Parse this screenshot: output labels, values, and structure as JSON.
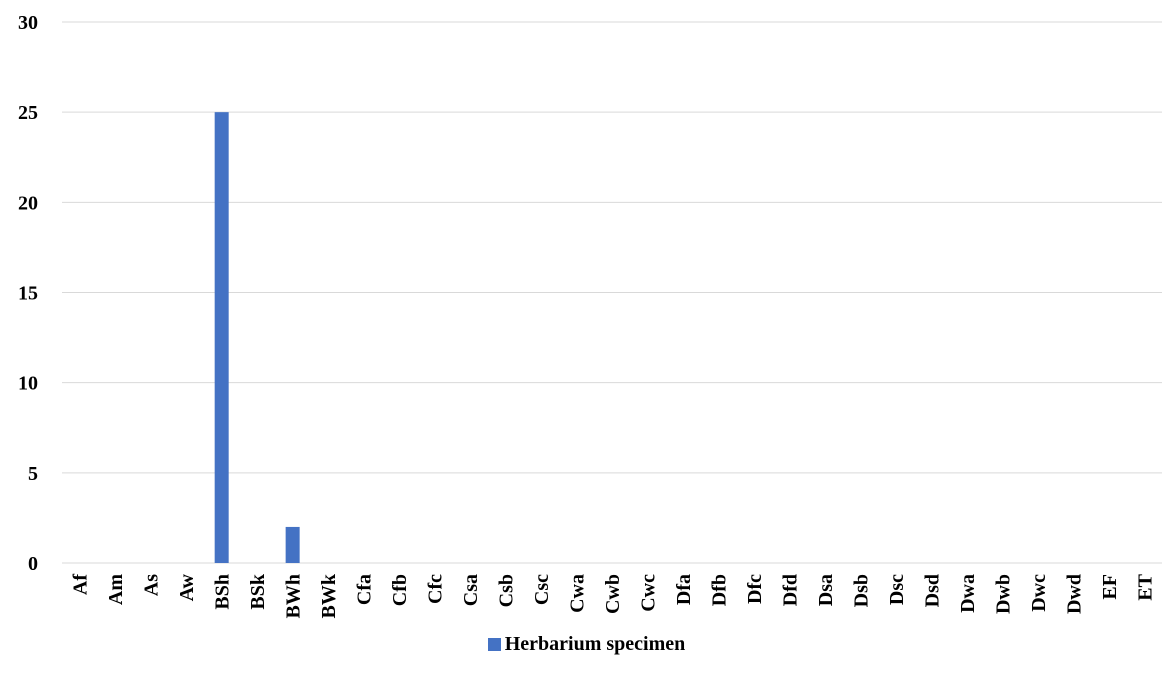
{
  "chart_data": {
    "type": "bar",
    "categories": [
      "Af",
      "Am",
      "As",
      "Aw",
      "BSh",
      "BSk",
      "BWh",
      "BWk",
      "Cfa",
      "Cfb",
      "Cfc",
      "Csa",
      "Csb",
      "Csc",
      "Cwa",
      "Cwb",
      "Cwc",
      "Dfa",
      "Dfb",
      "Dfc",
      "Dfd",
      "Dsa",
      "Dsb",
      "Dsc",
      "Dsd",
      "Dwa",
      "Dwb",
      "Dwc",
      "Dwd",
      "EF",
      "ET"
    ],
    "series": [
      {
        "name": "Herbarium specimen",
        "color": "#4472C4",
        "values": [
          0,
          0,
          0,
          0,
          25,
          0,
          2,
          0,
          0,
          0,
          0,
          0,
          0,
          0,
          0,
          0,
          0,
          0,
          0,
          0,
          0,
          0,
          0,
          0,
          0,
          0,
          0,
          0,
          0,
          0,
          0
        ]
      }
    ],
    "yticks": [
      "0",
      "5",
      "10",
      "15",
      "20",
      "25",
      "30"
    ],
    "ylim": [
      0,
      30
    ],
    "grid": true,
    "legend_position": "bottom",
    "title": "",
    "xlabel": "",
    "ylabel": ""
  }
}
